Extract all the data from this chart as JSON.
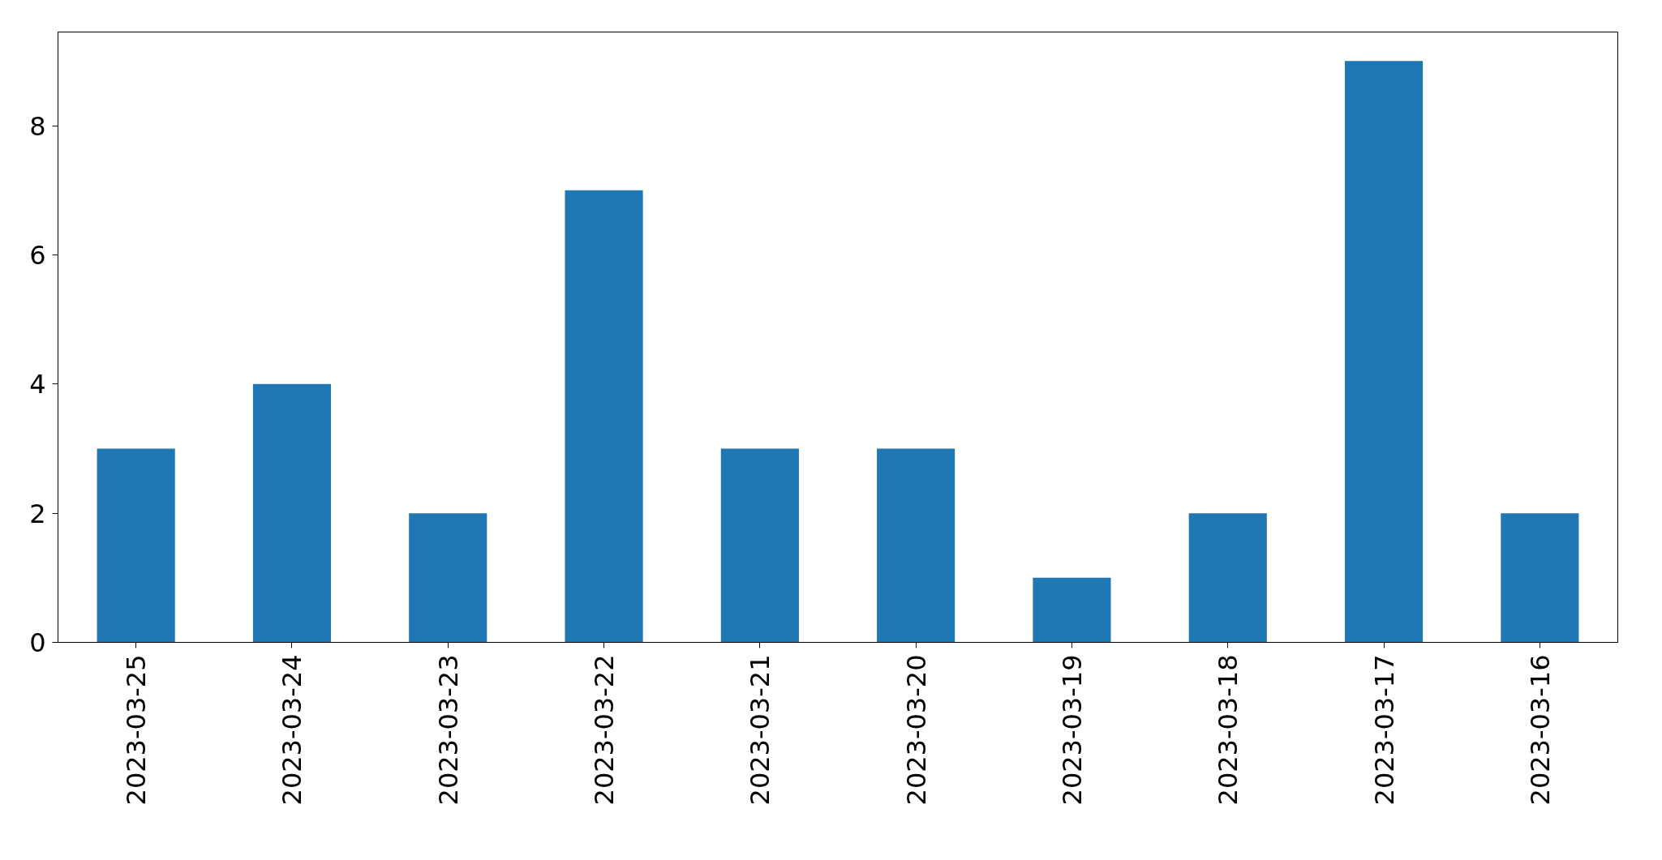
{
  "chart_data": {
    "type": "bar",
    "categories": [
      "2023-03-25",
      "2023-03-24",
      "2023-03-23",
      "2023-03-22",
      "2023-03-21",
      "2023-03-20",
      "2023-03-19",
      "2023-03-18",
      "2023-03-17",
      "2023-03-16"
    ],
    "values": [
      3,
      4,
      2,
      7,
      3,
      3,
      1,
      2,
      9,
      2
    ],
    "color": "#1f77b4",
    "ylim": [
      0,
      9.45
    ],
    "yticks": [
      0,
      2,
      4,
      6,
      8
    ]
  }
}
